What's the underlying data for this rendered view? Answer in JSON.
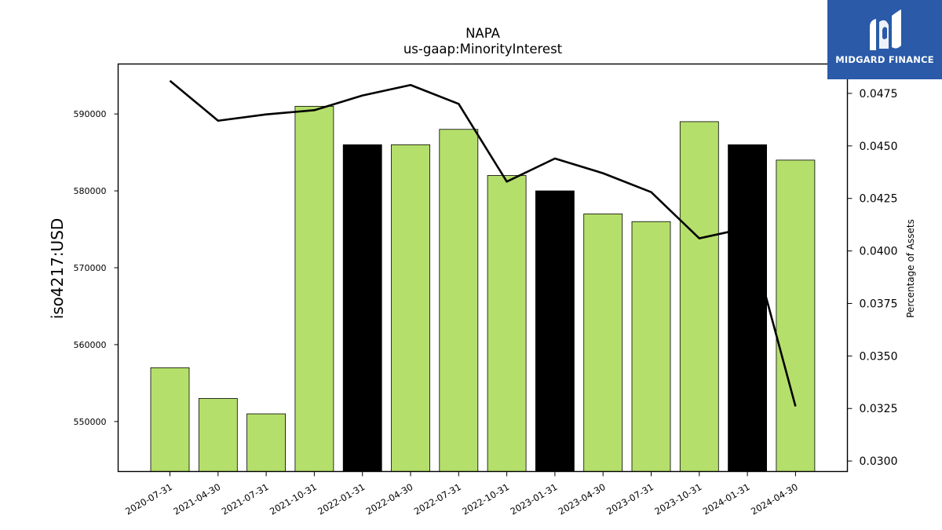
{
  "brand": {
    "name": "MIDGARD FINANCE",
    "bg": "#2a5aa8",
    "icon": "midgard-logo-icon"
  },
  "chart_data": {
    "type": "bar",
    "title": "NAPA",
    "subtitle": "us-gaap:MinorityInterest",
    "ylabel": "iso4217:USD",
    "ylabel_right": "Percentage of Assets",
    "categories": [
      "2020-07-31",
      "2021-04-30",
      "2021-07-31",
      "2021-10-31",
      "2022-01-31",
      "2022-04-30",
      "2022-07-31",
      "2022-10-31",
      "2023-01-31",
      "2023-04-30",
      "2023-07-31",
      "2023-10-31",
      "2024-01-31",
      "2024-04-30"
    ],
    "values": [
      557000,
      553000,
      551000,
      591000,
      586000,
      586000,
      588000,
      582000,
      580000,
      577000,
      576000,
      589000,
      586000,
      584000
    ],
    "bar_colors": [
      "#b5df6b",
      "#b5df6b",
      "#b5df6b",
      "#b5df6b",
      "#000000",
      "#b5df6b",
      "#b5df6b",
      "#b5df6b",
      "#000000",
      "#b5df6b",
      "#b5df6b",
      "#b5df6b",
      "#000000",
      "#b5df6b"
    ],
    "line_values": [
      0.0481,
      0.0462,
      0.0465,
      0.0467,
      0.0474,
      0.0479,
      0.047,
      0.0433,
      0.0444,
      0.0437,
      0.0428,
      0.0406,
      0.0411,
      0.0326
    ],
    "ylim": [
      543500,
      596500
    ],
    "y2lim": [
      0.0295,
      0.0489
    ],
    "yticks": [
      550000,
      560000,
      570000,
      580000,
      590000
    ],
    "y2ticks": [
      0.03,
      0.0325,
      0.035,
      0.0375,
      0.04,
      0.0425,
      0.045,
      0.0475
    ],
    "line_color": "#000000",
    "grid": false
  }
}
